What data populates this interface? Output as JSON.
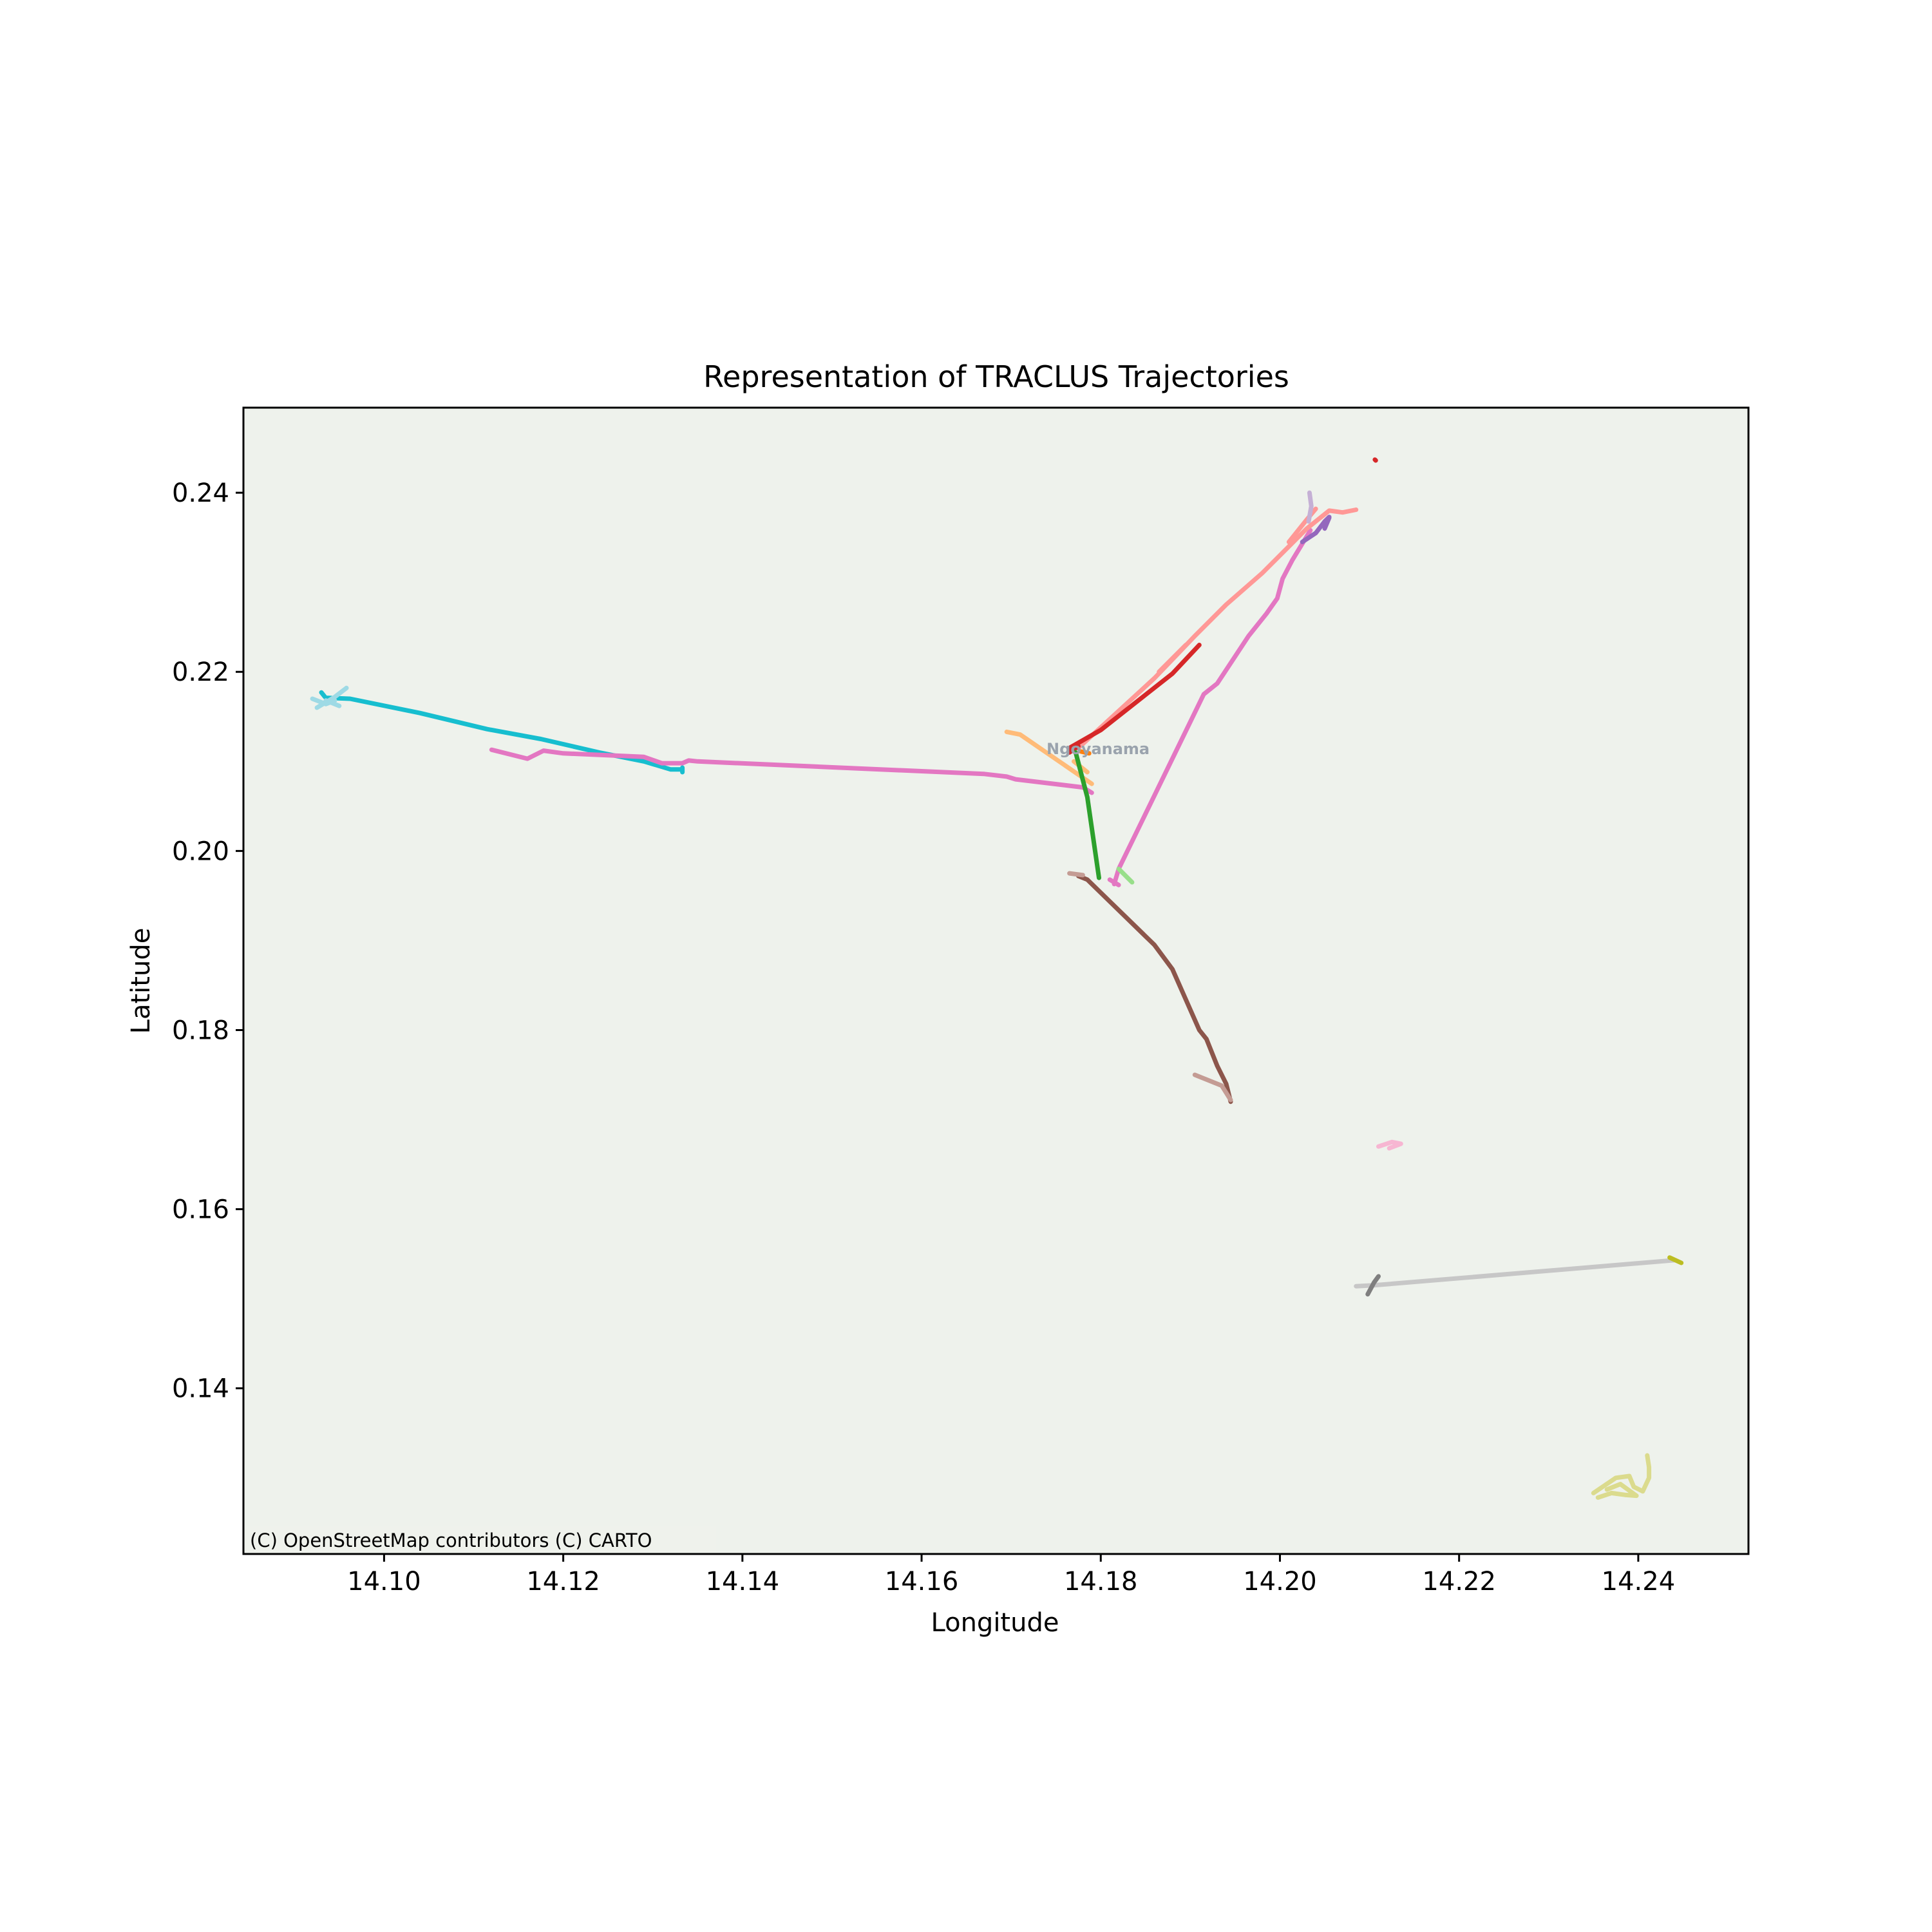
{
  "chart_data": {
    "type": "line",
    "title": "Representation of TRACLUS Trajectories",
    "xlabel": "Longitude",
    "ylabel": "Latitude",
    "xlim": [
      14.0843,
      14.2523
    ],
    "ylim": [
      0.1215,
      0.2495
    ],
    "xticks": [
      14.1,
      14.12,
      14.14,
      14.16,
      14.18,
      14.2,
      14.22,
      14.24
    ],
    "xtick_labels": [
      "14.10",
      "14.12",
      "14.14",
      "14.16",
      "14.18",
      "14.20",
      "14.22",
      "14.24"
    ],
    "yticks": [
      0.14,
      0.16,
      0.18,
      0.2,
      0.22,
      0.24
    ],
    "ytick_labels": [
      "0.14",
      "0.16",
      "0.18",
      "0.20",
      "0.22",
      "0.24"
    ],
    "grid": false,
    "legend": false,
    "background_color": "#eef2ec",
    "attribution": "(C) OpenStreetMap contributors (C) CARTO",
    "map_labels": [
      {
        "text": "Ngoyanama",
        "x": 14.1797,
        "y": 0.2108,
        "color": "#9aa3ad"
      }
    ],
    "series": [
      {
        "color": "#17becf",
        "points": [
          [
            14.0935,
            0.2171
          ],
          [
            14.0962,
            0.217
          ],
          [
            14.104,
            0.2154
          ],
          [
            14.1115,
            0.2136
          ],
          [
            14.1175,
            0.2125
          ],
          [
            14.124,
            0.211
          ],
          [
            14.129,
            0.21
          ],
          [
            14.132,
            0.2091
          ],
          [
            14.1333,
            0.2091
          ]
        ]
      },
      {
        "color": "#17becf",
        "points": [
          [
            14.1333,
            0.2093
          ],
          [
            14.1333,
            0.2088
          ]
        ]
      },
      {
        "color": "#17becf",
        "points": [
          [
            14.093,
            0.2177
          ],
          [
            14.0934,
            0.2172
          ]
        ]
      },
      {
        "color": "#9edae5",
        "points": [
          [
            14.092,
            0.217
          ],
          [
            14.0935,
            0.2164
          ],
          [
            14.0945,
            0.2168
          ]
        ]
      },
      {
        "color": "#9edae5",
        "points": [
          [
            14.0925,
            0.216
          ],
          [
            14.0945,
            0.2172
          ],
          [
            14.0958,
            0.2182
          ]
        ]
      },
      {
        "color": "#9edae5",
        "points": [
          [
            14.0935,
            0.2168
          ],
          [
            14.095,
            0.2162
          ]
        ]
      },
      {
        "color": "#e377c2",
        "points": [
          [
            14.112,
            0.2113
          ],
          [
            14.116,
            0.2103
          ],
          [
            14.1178,
            0.2112
          ],
          [
            14.12,
            0.2109
          ],
          [
            14.127,
            0.2106
          ],
          [
            14.129,
            0.2105
          ],
          [
            14.131,
            0.2098
          ],
          [
            14.1333,
            0.2098
          ],
          [
            14.134,
            0.2101
          ],
          [
            14.135,
            0.21
          ],
          [
            14.167,
            0.2086
          ],
          [
            14.1695,
            0.2083
          ],
          [
            14.1705,
            0.208
          ],
          [
            14.178,
            0.2071
          ],
          [
            14.179,
            0.2065
          ]
        ]
      },
      {
        "color": "#e377c2",
        "points": [
          [
            14.1815,
            0.1963
          ],
          [
            14.182,
            0.198
          ],
          [
            14.1915,
            0.2175
          ],
          [
            14.193,
            0.2187
          ],
          [
            14.1965,
            0.224
          ],
          [
            14.1985,
            0.2265
          ],
          [
            14.1997,
            0.2282
          ],
          [
            14.2003,
            0.2304
          ],
          [
            14.2014,
            0.2325
          ],
          [
            14.2034,
            0.2358
          ]
        ]
      },
      {
        "color": "#e377c2",
        "points": [
          [
            14.181,
            0.1968
          ],
          [
            14.182,
            0.1962
          ]
        ]
      },
      {
        "color": "#ff9896",
        "points": [
          [
            14.1775,
            0.2115
          ],
          [
            14.186,
            0.2193
          ],
          [
            14.1905,
            0.224
          ],
          [
            14.194,
            0.2275
          ],
          [
            14.198,
            0.231
          ],
          [
            14.201,
            0.234
          ],
          [
            14.203,
            0.236
          ],
          [
            14.2055,
            0.238
          ],
          [
            14.207,
            0.2378
          ],
          [
            14.2085,
            0.2381
          ]
        ]
      },
      {
        "color": "#ff9896",
        "points": [
          [
            14.1865,
            0.22
          ],
          [
            14.1895,
            0.223
          ]
        ]
      },
      {
        "color": "#ff9896",
        "points": [
          [
            14.201,
            0.2345
          ],
          [
            14.203,
            0.237
          ],
          [
            14.204,
            0.2382
          ]
        ]
      },
      {
        "color": "#d62728",
        "points": [
          [
            14.1765,
            0.2115
          ],
          [
            14.18,
            0.2135
          ],
          [
            14.188,
            0.2198
          ],
          [
            14.191,
            0.223
          ]
        ]
      },
      {
        "color": "#d62728",
        "points": [
          [
            14.1765,
            0.211
          ],
          [
            14.1775,
            0.2117
          ]
        ]
      },
      {
        "color": "#ffbb78",
        "points": [
          [
            14.1695,
            0.2133
          ],
          [
            14.171,
            0.213
          ],
          [
            14.179,
            0.2075
          ]
        ]
      },
      {
        "color": "#ffbb78",
        "points": [
          [
            14.177,
            0.21
          ],
          [
            14.1785,
            0.2088
          ]
        ]
      },
      {
        "color": "#ff7f0e",
        "points": [
          [
            14.1778,
            0.2111
          ],
          [
            14.1787,
            0.2109
          ]
        ]
      },
      {
        "color": "#2ca02c",
        "points": [
          [
            14.1772,
            0.211
          ],
          [
            14.1785,
            0.206
          ],
          [
            14.1798,
            0.197
          ]
        ]
      },
      {
        "color": "#98df8a",
        "points": [
          [
            14.182,
            0.198
          ],
          [
            14.1835,
            0.1965
          ]
        ]
      },
      {
        "color": "#8c564b",
        "points": [
          [
            14.1775,
            0.1972
          ],
          [
            14.1785,
            0.1968
          ],
          [
            14.186,
            0.1895
          ],
          [
            14.188,
            0.1868
          ],
          [
            14.191,
            0.18
          ],
          [
            14.1918,
            0.179
          ],
          [
            14.193,
            0.176
          ],
          [
            14.194,
            0.174
          ],
          [
            14.1945,
            0.172
          ]
        ]
      },
      {
        "color": "#c49c94",
        "points": [
          [
            14.1765,
            0.1975
          ],
          [
            14.178,
            0.1973
          ]
        ]
      },
      {
        "color": "#c49c94",
        "points": [
          [
            14.1905,
            0.175
          ],
          [
            14.1935,
            0.1738
          ],
          [
            14.1945,
            0.1722
          ]
        ]
      },
      {
        "color": "#9467bd",
        "points": [
          [
            14.2025,
            0.2345
          ],
          [
            14.204,
            0.2355
          ],
          [
            14.205,
            0.2368
          ],
          [
            14.2055,
            0.2373
          ]
        ]
      },
      {
        "color": "#9467bd",
        "points": [
          [
            14.205,
            0.236
          ],
          [
            14.2055,
            0.2372
          ]
        ]
      },
      {
        "color": "#c5b0d5",
        "points": [
          [
            14.2032,
            0.2368
          ],
          [
            14.2035,
            0.2385
          ],
          [
            14.2033,
            0.24
          ]
        ]
      },
      {
        "color": "#f7b6d2",
        "points": [
          [
            14.211,
            0.167
          ],
          [
            14.2125,
            0.1675
          ],
          [
            14.2135,
            0.1673
          ],
          [
            14.2122,
            0.1668
          ]
        ]
      },
      {
        "color": "#c7c7c7",
        "points": [
          [
            14.2085,
            0.1514
          ],
          [
            14.2105,
            0.1515
          ],
          [
            14.244,
            0.1543
          ]
        ]
      },
      {
        "color": "#7f7f7f",
        "points": [
          [
            14.2098,
            0.1505
          ],
          [
            14.2105,
            0.1518
          ],
          [
            14.211,
            0.1525
          ]
        ]
      },
      {
        "color": "#bcbd22",
        "points": [
          [
            14.2435,
            0.1546
          ],
          [
            14.2448,
            0.154
          ]
        ]
      },
      {
        "color": "#dbdb8d",
        "points": [
          [
            14.235,
            0.1283
          ],
          [
            14.2375,
            0.13
          ],
          [
            14.239,
            0.1302
          ],
          [
            14.2395,
            0.129
          ],
          [
            14.2405,
            0.1285
          ],
          [
            14.2412,
            0.13
          ],
          [
            14.2412,
            0.1312
          ],
          [
            14.241,
            0.1325
          ]
        ]
      },
      {
        "color": "#dbdb8d",
        "points": [
          [
            14.2355,
            0.1278
          ],
          [
            14.237,
            0.1283
          ],
          [
            14.2385,
            0.1281
          ],
          [
            14.2398,
            0.128
          ],
          [
            14.238,
            0.1293
          ],
          [
            14.2365,
            0.1287
          ]
        ]
      },
      {
        "color": "#d62728",
        "points": [
          [
            14.2106,
            0.2437
          ],
          [
            14.2107,
            0.2436
          ]
        ]
      }
    ]
  }
}
